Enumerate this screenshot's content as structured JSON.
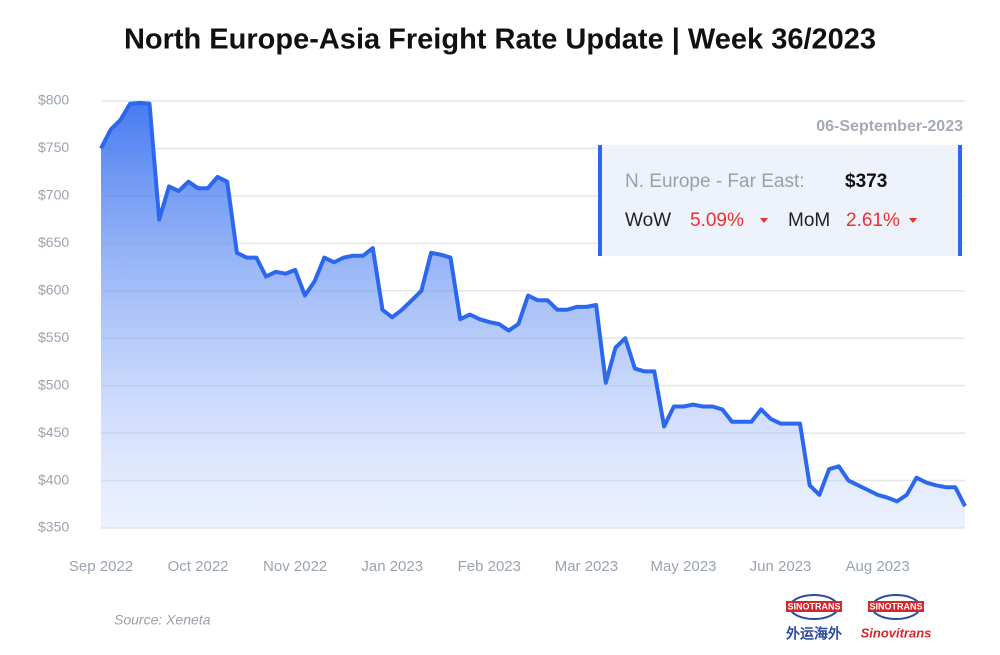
{
  "chart_data": {
    "type": "area",
    "title": "North Europe-Asia Freight Rate Update | Week 36/2023",
    "color": "#2c68ef",
    "x": [
      0,
      1,
      2,
      3,
      4,
      5,
      6,
      7,
      8,
      9,
      10,
      11,
      12,
      13,
      14,
      15,
      16,
      17,
      18,
      19,
      20,
      21,
      22,
      23,
      24,
      25,
      26,
      27,
      28,
      29,
      30,
      31,
      32,
      33,
      34,
      35,
      36,
      37,
      38,
      39,
      40,
      41,
      42,
      43,
      44,
      45,
      46,
      47,
      48,
      49,
      50,
      51,
      52,
      53,
      54,
      55,
      56,
      57,
      58,
      59,
      60,
      61,
      62,
      63,
      64,
      65,
      66,
      67,
      68,
      69,
      70,
      71,
      72,
      73,
      74,
      75,
      76,
      77,
      78,
      79,
      80,
      81,
      82,
      83,
      84,
      85,
      86,
      87,
      88,
      89
    ],
    "values": [
      750,
      770,
      780,
      797,
      798,
      797,
      675,
      710,
      705,
      715,
      708,
      708,
      720,
      715,
      640,
      635,
      635,
      615,
      620,
      618,
      622,
      595,
      610,
      635,
      630,
      635,
      637,
      637,
      645,
      580,
      572,
      580,
      590,
      600,
      640,
      638,
      635,
      570,
      575,
      570,
      567,
      565,
      558,
      565,
      595,
      590,
      590,
      580,
      580,
      583,
      583,
      585,
      503,
      540,
      550,
      518,
      515,
      515,
      457,
      478,
      478,
      480,
      478,
      478,
      475,
      462,
      462,
      462,
      475,
      465,
      460,
      460,
      460,
      395,
      385,
      412,
      415,
      400,
      395,
      390,
      385,
      382,
      378,
      385,
      403,
      398,
      395,
      393,
      393,
      373
    ],
    "xlim": [
      0,
      89
    ],
    "xticks": [
      {
        "value": 0,
        "label": "Sep 2022"
      },
      {
        "value": 10,
        "label": "Oct 2022"
      },
      {
        "value": 20,
        "label": "Nov 2022"
      },
      {
        "value": 30,
        "label": "Jan 2023"
      },
      {
        "value": 40,
        "label": "Feb 2023"
      },
      {
        "value": 50,
        "label": "Mar 2023"
      },
      {
        "value": 60,
        "label": "May 2023"
      },
      {
        "value": 70,
        "label": "Jun 2023"
      },
      {
        "value": 80,
        "label": "Aug 2023"
      }
    ],
    "ylim": [
      350,
      800
    ],
    "yticks": [
      {
        "value": 350,
        "label": "$350"
      },
      {
        "value": 400,
        "label": "$400"
      },
      {
        "value": 450,
        "label": "$450"
      },
      {
        "value": 500,
        "label": "$500"
      },
      {
        "value": 550,
        "label": "$550"
      },
      {
        "value": 600,
        "label": "$600"
      },
      {
        "value": 650,
        "label": "$650"
      },
      {
        "value": 700,
        "label": "$700"
      },
      {
        "value": 750,
        "label": "$750"
      },
      {
        "value": 800,
        "label": "$800"
      }
    ],
    "grid": true,
    "annotation": {
      "date": "06-September-2023",
      "series_label": "N. Europe - Far East:",
      "price": "$373",
      "wow_label": "WoW",
      "wow": "5.09%",
      "mom_label": "MoM",
      "mom": "2.61%"
    },
    "source": "Source: Xeneta"
  },
  "branding": {
    "logo_left": "SINOTRANS",
    "logo_right": "SINOTRANS",
    "left_text": "外运海外",
    "right_text": "Sinovitrans"
  }
}
